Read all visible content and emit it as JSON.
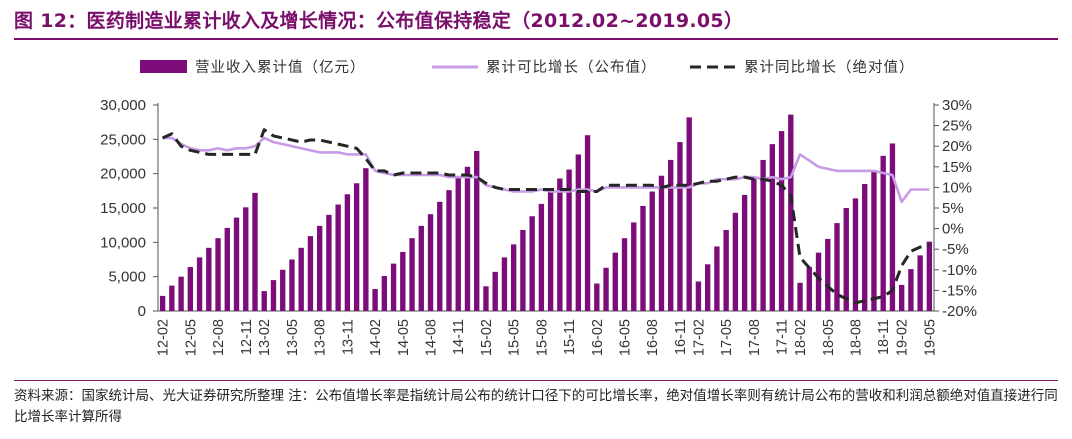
{
  "header": {
    "title": "图 12：医药制造业累计收入及增长情况：公布值保持稳定（2012.02~2019.05）"
  },
  "footer": {
    "note": "资料来源：国家统计局、光大证券研究所整理  注：公布值增长率是指统计局公布的统计口径下的可比增长率，绝对值增长率则有统计局公布的营收和利润总额绝对值直接进行同比增长率计算所得"
  },
  "colors": {
    "bar": "#7b0c79",
    "published": "#c89be6",
    "absolute": "#262626",
    "title": "#7a0f6b"
  },
  "chart_data": {
    "type": "bar+line",
    "legend_position": "top",
    "grid": false,
    "x_tick_labels": [
      "12-02",
      "12-05",
      "12-08",
      "12-11",
      "13-02",
      "13-05",
      "13-08",
      "13-11",
      "14-02",
      "14-05",
      "14-08",
      "14-11",
      "15-02",
      "15-05",
      "15-08",
      "15-11",
      "16-02",
      "16-05",
      "16-08",
      "16-11",
      "17-02",
      "17-05",
      "17-08",
      "17-11",
      "18-02",
      "18-05",
      "18-08",
      "18-11",
      "19-02",
      "19-05"
    ],
    "y_left": {
      "min": 0,
      "max": 30000,
      "ticks": [
        "0",
        "5,000",
        "10,000",
        "15,000",
        "20,000",
        "25,000",
        "30,000"
      ]
    },
    "y_right": {
      "min": -20,
      "max": 30,
      "ticks": [
        "-20%",
        "-15%",
        "-10%",
        "-5%",
        "0%",
        "5%",
        "10%",
        "15%",
        "20%",
        "25%",
        "30%"
      ]
    },
    "groups": [
      {
        "label": "12",
        "start": "12-02",
        "bars": [
          2200,
          3700,
          5000,
          6400,
          7800,
          9200,
          10600,
          12100,
          13600,
          15100,
          17200
        ],
        "published": [
          22.0,
          22.0,
          20.5,
          19.5,
          19.0,
          19.0,
          19.5,
          19.0,
          19.5,
          19.5,
          20.0
        ],
        "absolute": [
          22.0,
          23.0,
          20.0,
          19.0,
          18.5,
          18.0,
          18.0,
          18.0,
          18.0,
          18.0,
          18.0
        ]
      },
      {
        "label": "13",
        "start": "13-02",
        "bars": [
          2900,
          4500,
          6000,
          7500,
          9200,
          10900,
          12400,
          14000,
          15500,
          17000,
          18600,
          20800
        ],
        "published": [
          22.0,
          21.0,
          20.5,
          20.0,
          19.5,
          19.0,
          18.5,
          18.5,
          18.5,
          18.0,
          18.0,
          18.0
        ],
        "absolute": [
          24.0,
          22.5,
          22.0,
          21.5,
          21.0,
          21.5,
          21.5,
          21.0,
          20.5,
          20.0,
          19.5,
          17.0
        ]
      },
      {
        "label": "14",
        "start": "14-02",
        "bars": [
          3200,
          5100,
          6900,
          8600,
          10600,
          12400,
          14100,
          15900,
          17600,
          19400,
          21000,
          23300
        ],
        "published": [
          14.0,
          13.5,
          13.0,
          13.0,
          13.0,
          13.0,
          13.0,
          13.0,
          12.5,
          12.5,
          12.5,
          12.5
        ],
        "absolute": [
          14.0,
          14.0,
          13.0,
          13.5,
          13.5,
          13.5,
          13.5,
          13.5,
          13.0,
          13.0,
          13.0,
          12.5
        ]
      },
      {
        "label": "15",
        "start": "15-02",
        "bars": [
          3600,
          5700,
          7800,
          9700,
          11800,
          13800,
          15600,
          17500,
          19300,
          20600,
          22800,
          25600
        ],
        "published": [
          10.5,
          10.0,
          9.5,
          9.0,
          9.0,
          9.0,
          9.5,
          9.0,
          9.0,
          9.0,
          9.5,
          9.5
        ],
        "absolute": [
          11.0,
          10.0,
          9.5,
          9.5,
          9.5,
          9.5,
          9.5,
          9.5,
          9.5,
          9.5,
          9.0,
          9.0
        ]
      },
      {
        "label": "16",
        "start": "16-02",
        "bars": [
          4000,
          6300,
          8500,
          10600,
          12900,
          15300,
          17400,
          19700,
          22000,
          24600,
          28200
        ],
        "published": [
          9.0,
          10.0,
          10.0,
          10.0,
          10.0,
          10.0,
          10.0,
          10.0,
          10.0,
          10.0,
          10.0
        ],
        "absolute": [
          9.0,
          10.5,
          10.5,
          10.5,
          10.5,
          10.5,
          10.5,
          10.0,
          10.5,
          10.5,
          10.5
        ]
      },
      {
        "label": "17",
        "start": "17-02",
        "bars": [
          4300,
          6800,
          9400,
          11800,
          14300,
          16900,
          19500,
          22000,
          24300,
          26200,
          28600
        ],
        "published": [
          11.0,
          11.0,
          12.0,
          12.0,
          12.0,
          12.5,
          12.5,
          12.0,
          12.5,
          12.0,
          12.5
        ],
        "absolute": [
          11.0,
          11.5,
          11.5,
          12.0,
          12.5,
          12.5,
          12.0,
          12.0,
          11.5,
          10.5,
          8.0
        ]
      },
      {
        "label": "18",
        "start": "18-02",
        "bars": [
          4100,
          6400,
          8500,
          10500,
          12800,
          15000,
          16400,
          18500,
          20500,
          22600,
          24400
        ],
        "published": [
          18.0,
          16.5,
          15.0,
          14.5,
          14.0,
          14.0,
          14.0,
          14.0,
          14.0,
          13.5,
          13.0
        ],
        "absolute": [
          -7.0,
          -9.5,
          -12.0,
          -14.0,
          -16.0,
          -17.0,
          -18.0,
          -17.5,
          -17.0,
          -16.5,
          -15.0
        ]
      },
      {
        "label": "19",
        "start": "19-02",
        "bars": [
          3800,
          6100,
          8100,
          10100
        ],
        "published": [
          6.5,
          9.5,
          9.5,
          9.5
        ],
        "absolute": [
          -9.0,
          -5.5,
          -4.5,
          -4.0
        ]
      }
    ],
    "series": [
      {
        "name": "营业收入累计值（亿元）",
        "type": "bar",
        "axis": "left"
      },
      {
        "name": "累计可比增长（公布值）",
        "type": "line",
        "axis": "right"
      },
      {
        "name": "累计同比增长（绝对值）",
        "type": "line",
        "style": "dashed",
        "axis": "right"
      }
    ]
  }
}
